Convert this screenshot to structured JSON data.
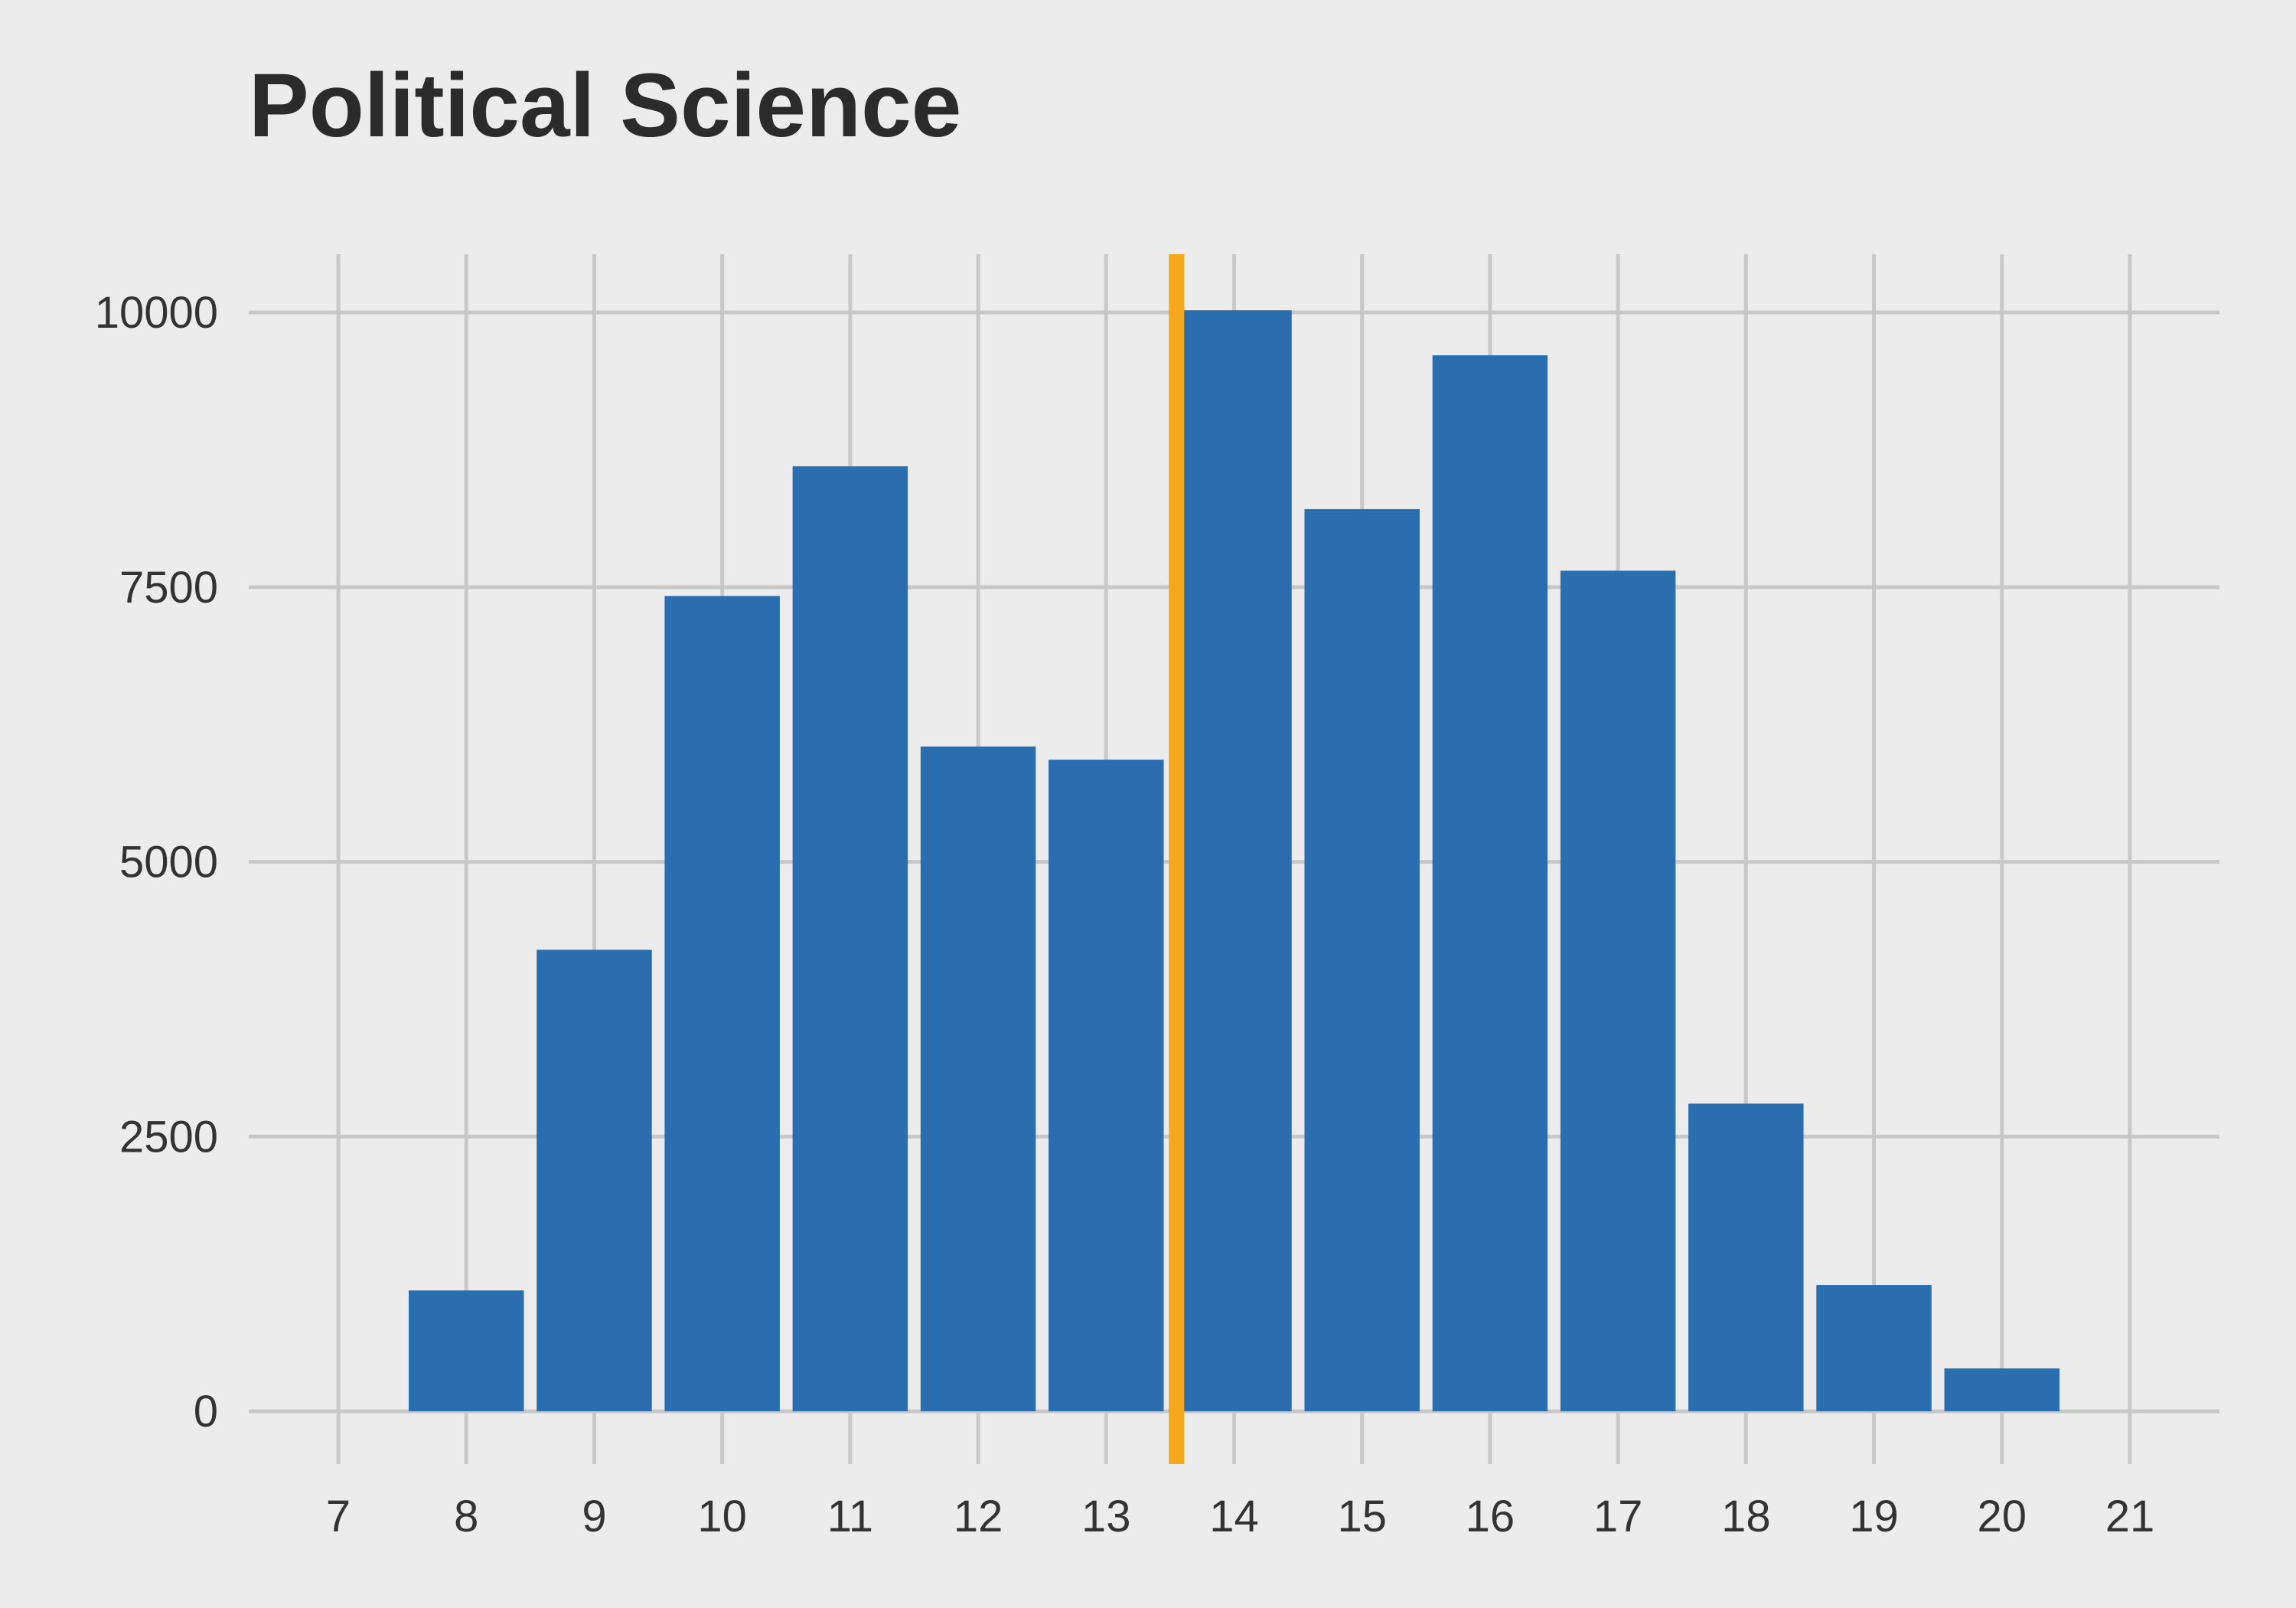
{
  "chart_data": {
    "type": "bar",
    "title": "Political Science",
    "xlabel": "",
    "ylabel": "",
    "x": [
      8,
      9,
      10,
      11,
      12,
      13,
      14,
      15,
      16,
      17,
      18,
      19,
      20
    ],
    "values": [
      1100,
      4200,
      7420,
      8600,
      6050,
      5930,
      10020,
      8210,
      9610,
      7650,
      2800,
      1150,
      390
    ],
    "xlim": [
      6.3,
      21.7
    ],
    "ylim": [
      -480,
      10530
    ],
    "x_ticks": [
      7,
      8,
      9,
      10,
      11,
      12,
      13,
      14,
      15,
      16,
      17,
      18,
      19,
      20,
      21
    ],
    "y_ticks": [
      0,
      2500,
      5000,
      7500,
      10000
    ],
    "reference_line": {
      "x": 13.55,
      "color": "#f5a81c"
    },
    "grid": true,
    "legend": "none",
    "colors": {
      "bar": "#2a6eb0",
      "background": "#ececec",
      "grid": "#c8c8c8",
      "text": "#333333",
      "title": "#2b2b2b"
    }
  }
}
